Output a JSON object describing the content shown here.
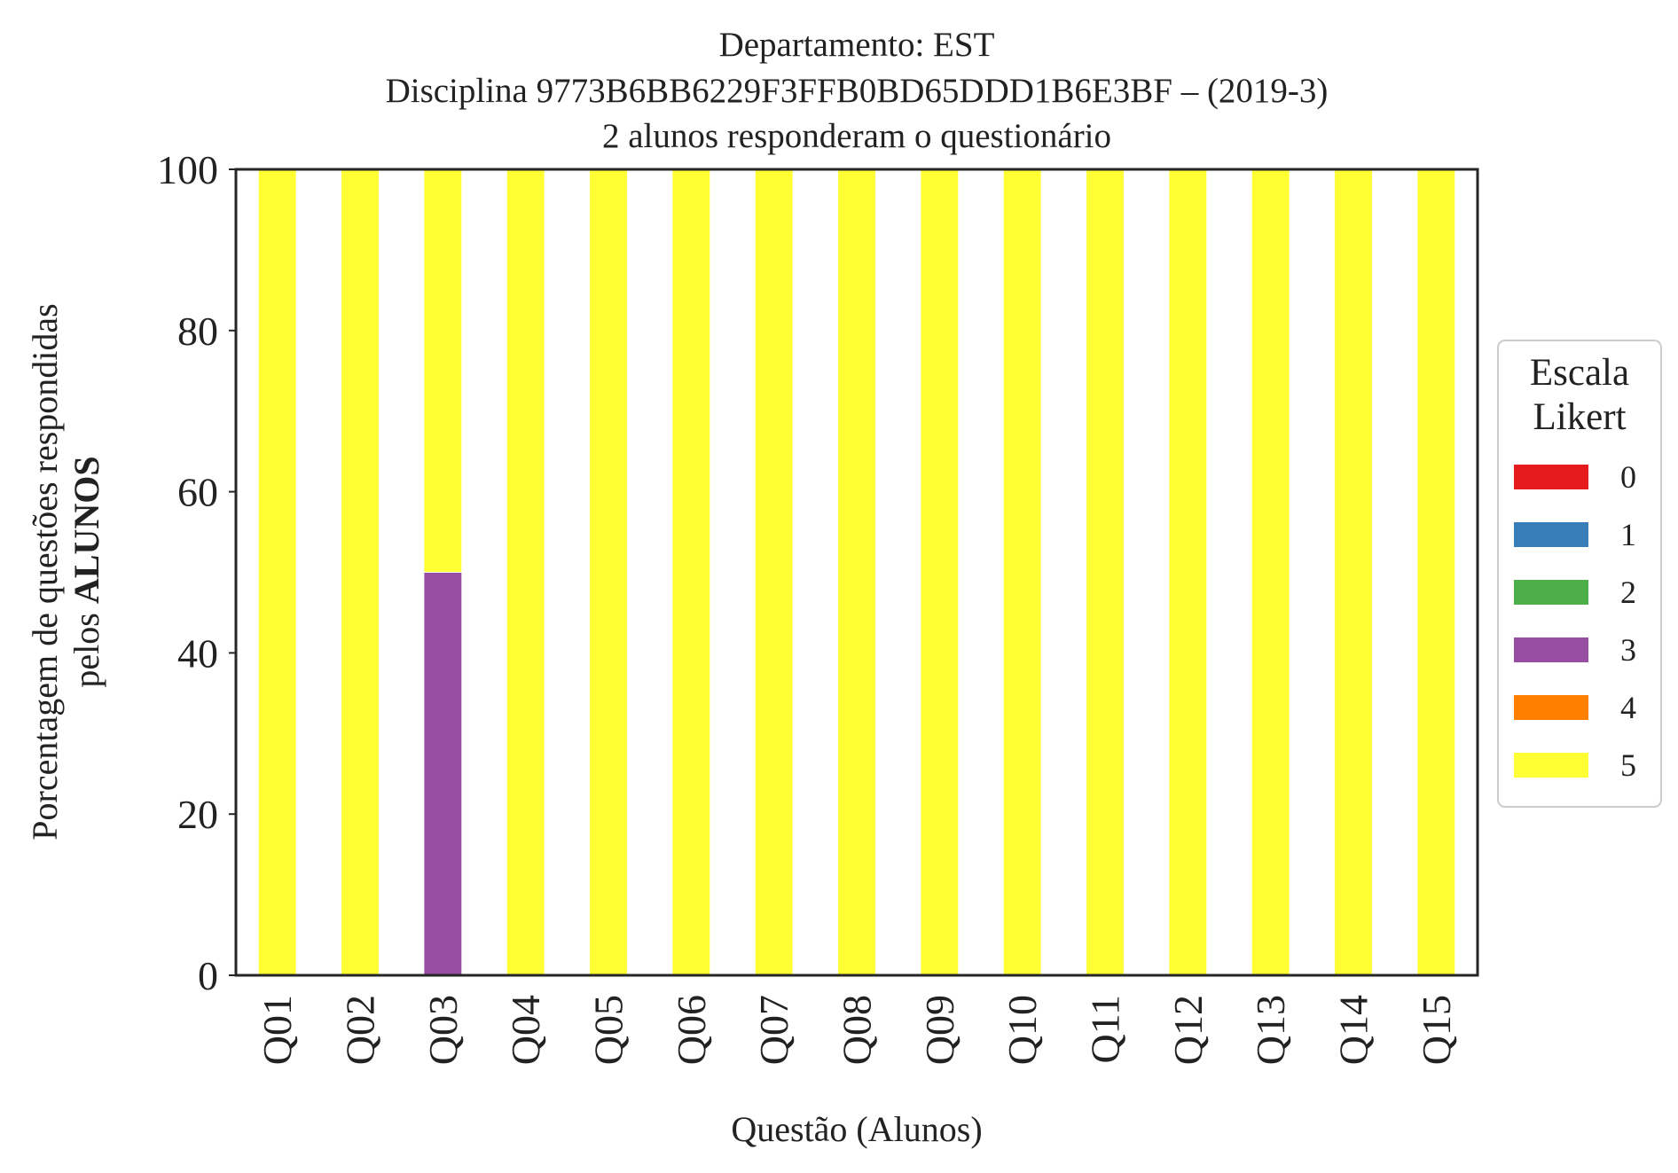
{
  "chart_data": {
    "type": "bar",
    "stacked": true,
    "title": [
      "Departamento: EST",
      "Disciplina 9773B6BB6229F3FFB0BD65DDD1B6E3BF – (2019-3)",
      "2 alunos responderam o questionário"
    ],
    "xlabel": "Questão (Alunos)",
    "ylabel_line1": "Porcentagem de questões respondidas",
    "ylabel_line2_prefix": "pelos ",
    "ylabel_line2_bold": "ALUNOS",
    "ylim": [
      0,
      100
    ],
    "yticks": [
      "0",
      "20",
      "40",
      "60",
      "80",
      "100"
    ],
    "categories": [
      "Q01",
      "Q02",
      "Q03",
      "Q04",
      "Q05",
      "Q06",
      "Q07",
      "Q08",
      "Q09",
      "Q10",
      "Q11",
      "Q12",
      "Q13",
      "Q14",
      "Q15"
    ],
    "legend": {
      "title": [
        "Escala",
        "Likert"
      ],
      "placement": "center-right, outside plot"
    },
    "grid": false,
    "series": [
      {
        "name": "0",
        "color": "#e41a1c",
        "values": [
          0,
          0,
          0,
          0,
          0,
          0,
          0,
          0,
          0,
          0,
          0,
          0,
          0,
          0,
          0
        ]
      },
      {
        "name": "1",
        "color": "#377eb8",
        "values": [
          0,
          0,
          0,
          0,
          0,
          0,
          0,
          0,
          0,
          0,
          0,
          0,
          0,
          0,
          0
        ]
      },
      {
        "name": "2",
        "color": "#4daf4a",
        "values": [
          0,
          0,
          0,
          0,
          0,
          0,
          0,
          0,
          0,
          0,
          0,
          0,
          0,
          0,
          0
        ]
      },
      {
        "name": "3",
        "color": "#984ea3",
        "values": [
          0,
          0,
          50,
          0,
          0,
          0,
          0,
          0,
          0,
          0,
          0,
          0,
          0,
          0,
          0
        ]
      },
      {
        "name": "4",
        "color": "#ff7f00",
        "values": [
          0,
          0,
          0,
          0,
          0,
          0,
          0,
          0,
          0,
          0,
          0,
          0,
          0,
          0,
          0
        ]
      },
      {
        "name": "5",
        "color": "#ffff33",
        "values": [
          100,
          100,
          50,
          100,
          100,
          100,
          100,
          100,
          100,
          100,
          100,
          100,
          100,
          100,
          100
        ]
      }
    ]
  }
}
